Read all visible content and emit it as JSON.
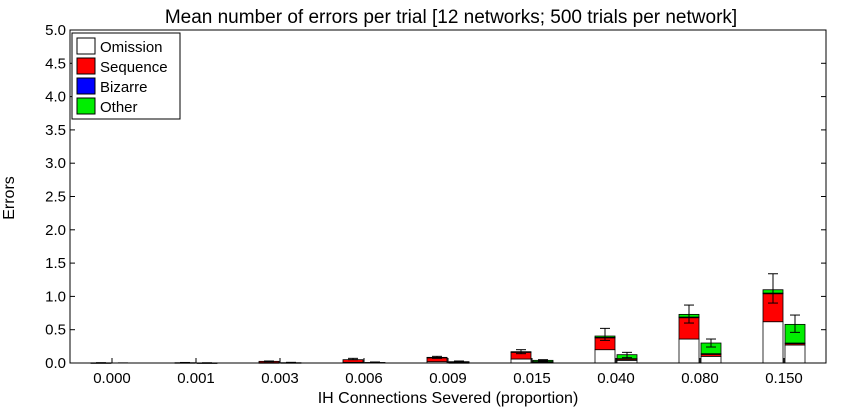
{
  "chart_data": {
    "type": "bar",
    "title": "Mean number of errors per trial [12 networks; 500 trials per network]",
    "xlabel": "IH Connections Severed (proportion)",
    "ylabel": "Errors",
    "ylim": [
      0,
      5.0
    ],
    "yticks": [
      "0.0",
      "0.5",
      "1.0",
      "1.5",
      "2.0",
      "2.5",
      "3.0",
      "3.5",
      "4.0",
      "4.5",
      "5.0"
    ],
    "categories": [
      "0.000",
      "0.001",
      "0.003",
      "0.006",
      "0.009",
      "0.015",
      "0.040",
      "0.080",
      "0.150"
    ],
    "legend_position": "top-left",
    "grid": false,
    "stacked": true,
    "bars_per_category": 2,
    "series": [
      {
        "name": "Omission",
        "color": "#ffffff",
        "values": [
          [
            0.0,
            0.0
          ],
          [
            0.0,
            0.0
          ],
          [
            0.005,
            0.0
          ],
          [
            0.01,
            0.0
          ],
          [
            0.02,
            0.005
          ],
          [
            0.06,
            0.01
          ],
          [
            0.2,
            0.04
          ],
          [
            0.36,
            0.1
          ],
          [
            0.62,
            0.27
          ]
        ]
      },
      {
        "name": "Sequence",
        "color": "#ff0000",
        "values": [
          [
            0.003,
            0.0
          ],
          [
            0.005,
            0.002
          ],
          [
            0.02,
            0.005
          ],
          [
            0.04,
            0.008
          ],
          [
            0.06,
            0.01
          ],
          [
            0.1,
            0.01
          ],
          [
            0.18,
            0.02
          ],
          [
            0.32,
            0.03
          ],
          [
            0.42,
            0.02
          ]
        ]
      },
      {
        "name": "Bizarre",
        "color": "#0000ff",
        "values": [
          [
            0.0,
            0.0
          ],
          [
            0.0,
            0.0
          ],
          [
            0.0,
            0.0
          ],
          [
            0.0,
            0.0
          ],
          [
            0.0,
            0.0
          ],
          [
            0.0,
            0.0
          ],
          [
            0.005,
            0.005
          ],
          [
            0.01,
            0.01
          ],
          [
            0.01,
            0.01
          ]
        ]
      },
      {
        "name": "Other",
        "color": "#00ee00",
        "values": [
          [
            0.0,
            0.0
          ],
          [
            0.0,
            0.0
          ],
          [
            0.0,
            0.0
          ],
          [
            0.0,
            0.0
          ],
          [
            0.005,
            0.005
          ],
          [
            0.01,
            0.02
          ],
          [
            0.02,
            0.06
          ],
          [
            0.04,
            0.16
          ],
          [
            0.05,
            0.28
          ]
        ]
      }
    ],
    "error_bars": {
      "totals_upper": [
        [
          0.005,
          0.002
        ],
        [
          0.008,
          0.004
        ],
        [
          0.03,
          0.01
        ],
        [
          0.07,
          0.015
        ],
        [
          0.1,
          0.03
        ],
        [
          0.2,
          0.05
        ],
        [
          0.52,
          0.16
        ],
        [
          0.87,
          0.36
        ],
        [
          1.34,
          0.72
        ]
      ],
      "totals_lower": [
        [
          0.0,
          0.0
        ],
        [
          0.002,
          0.0
        ],
        [
          0.02,
          0.005
        ],
        [
          0.05,
          0.01
        ],
        [
          0.07,
          0.01
        ],
        [
          0.14,
          0.03
        ],
        [
          0.34,
          0.08
        ],
        [
          0.6,
          0.24
        ],
        [
          0.9,
          0.46
        ]
      ]
    },
    "colors": {
      "frame": "#000000",
      "bar_outline": "#000000"
    }
  }
}
